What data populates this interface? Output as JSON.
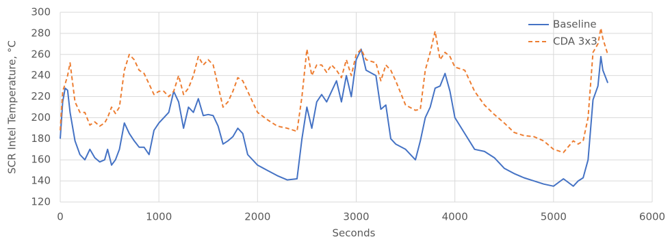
{
  "chart_data": {
    "type": "line",
    "y_label": "SCR Intel Temperature, °C",
    "x_label": "Seconds",
    "xlim": [
      0,
      6000
    ],
    "xticks": [
      0,
      1000,
      2000,
      3000,
      4000,
      5000,
      6000
    ],
    "ylim": [
      120,
      300
    ],
    "yticks": [
      120,
      140,
      160,
      180,
      200,
      220,
      240,
      260,
      280,
      300
    ],
    "grid": true,
    "legend": "top-right",
    "x": [
      0,
      25,
      50,
      75,
      100,
      150,
      200,
      250,
      300,
      350,
      400,
      450,
      480,
      520,
      560,
      600,
      650,
      700,
      750,
      800,
      850,
      900,
      950,
      1000,
      1050,
      1100,
      1150,
      1200,
      1250,
      1300,
      1350,
      1400,
      1450,
      1500,
      1550,
      1600,
      1650,
      1700,
      1750,
      1800,
      1850,
      1900,
      2000,
      2100,
      2200,
      2300,
      2400,
      2450,
      2500,
      2550,
      2600,
      2650,
      2700,
      2750,
      2800,
      2850,
      2900,
      2950,
      3000,
      3050,
      3100,
      3200,
      3250,
      3300,
      3350,
      3400,
      3500,
      3600,
      3650,
      3700,
      3750,
      3800,
      3850,
      3900,
      3950,
      4000,
      4100,
      4200,
      4300,
      4400,
      4500,
      4600,
      4700,
      4800,
      4900,
      5000,
      5100,
      5200,
      5250,
      5300,
      5350,
      5400,
      5450,
      5480,
      5500,
      5550
    ],
    "series": [
      {
        "name": "Baseline",
        "color": "#4472c4",
        "line_style": "solid",
        "values": [
          180,
          215,
          228,
          226,
          205,
          178,
          165,
          160,
          170,
          162,
          158,
          160,
          170,
          155,
          160,
          170,
          195,
          185,
          178,
          172,
          172,
          165,
          188,
          195,
          200,
          205,
          225,
          215,
          190,
          210,
          205,
          218,
          202,
          203,
          202,
          192,
          175,
          178,
          182,
          190,
          185,
          165,
          155,
          150,
          145,
          141,
          142,
          180,
          210,
          190,
          215,
          222,
          215,
          225,
          235,
          215,
          240,
          220,
          255,
          265,
          245,
          240,
          208,
          212,
          180,
          175,
          170,
          160,
          178,
          200,
          210,
          228,
          230,
          242,
          225,
          200,
          185,
          170,
          168,
          162,
          152,
          147,
          143,
          140,
          137,
          135,
          142,
          135,
          140,
          143,
          160,
          217,
          230,
          258,
          245,
          233
        ]
      },
      {
        "name": "CDA 3x3",
        "color": "#ed7d31",
        "line_style": "dashed",
        "values": [
          188,
          225,
          232,
          240,
          252,
          215,
          205,
          205,
          193,
          196,
          192,
          195,
          200,
          210,
          204,
          210,
          245,
          260,
          255,
          245,
          242,
          232,
          222,
          225,
          225,
          220,
          225,
          240,
          222,
          228,
          240,
          258,
          250,
          255,
          250,
          230,
          210,
          215,
          225,
          238,
          235,
          225,
          205,
          198,
          192,
          190,
          187,
          220,
          265,
          240,
          250,
          250,
          243,
          250,
          245,
          238,
          255,
          240,
          260,
          265,
          255,
          252,
          235,
          250,
          245,
          235,
          212,
          207,
          208,
          245,
          262,
          282,
          255,
          262,
          258,
          248,
          245,
          225,
          212,
          203,
          195,
          186,
          183,
          182,
          178,
          170,
          167,
          178,
          175,
          178,
          200,
          262,
          270,
          285,
          275,
          260
        ]
      }
    ]
  }
}
